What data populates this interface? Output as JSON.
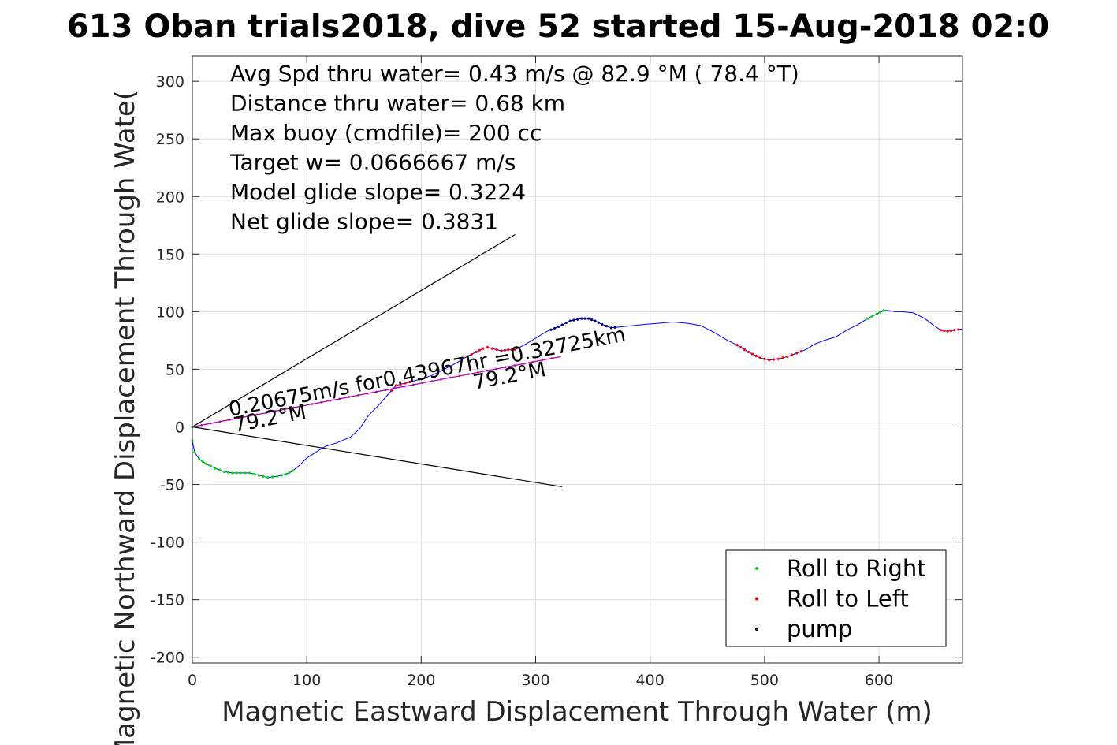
{
  "chart_data": {
    "type": "scatter",
    "title": "613 Oban trials2018, dive 52 started 15-Aug-2018 02:0",
    "xlabel": "Magnetic Eastward Displacement Through Water (m)",
    "ylabel": "Magnetic Northward Displacement Through Wate(",
    "xlim": [
      0,
      673
    ],
    "ylim": [
      -205,
      322
    ],
    "xticks": [
      "0",
      "100",
      "200",
      "300",
      "400",
      "500",
      "600"
    ],
    "yticks": [
      "300",
      "250",
      "200",
      "150",
      "100",
      "50",
      "0",
      "-50",
      "-100",
      "-150",
      "-200"
    ],
    "grid": true,
    "annotations": [
      "Avg Spd thru water=  0.43 m/s @  82.9 °M ( 78.4 °T)",
      "Distance thru water=  0.68 km",
      "Max buoy (cmdfile)= 200 cc",
      "Target w= 0.0666667 m/s",
      "Model glide slope= 0.3224",
      "Net glide slope= 0.3831"
    ],
    "current_label": "0.20675m/s for0.43967hr =0.32725km",
    "heading_labels": [
      "79.2°M",
      "79.2°M"
    ],
    "cone_lines": [
      {
        "x": [
          0,
          282
        ],
        "y": [
          0,
          167
        ]
      },
      {
        "x": [
          0,
          323
        ],
        "y": [
          0,
          -52
        ]
      }
    ],
    "current_line": {
      "x": [
        0,
        322
      ],
      "y": [
        0,
        61
      ]
    },
    "track": {
      "x": [
        0,
        0,
        2,
        6,
        12,
        20,
        28,
        35,
        42,
        50,
        58,
        66,
        74,
        82,
        88,
        94,
        100,
        108,
        116,
        126,
        138,
        146,
        154,
        162,
        170,
        178,
        186,
        194,
        202,
        210,
        220,
        230,
        240,
        248,
        254,
        258,
        262,
        266,
        270,
        276,
        282,
        290,
        300,
        310,
        320,
        330,
        340,
        346,
        352,
        358,
        366,
        376,
        386,
        396,
        408,
        420,
        432,
        444,
        456,
        466,
        476,
        486,
        496,
        504,
        512,
        520,
        528,
        536,
        544,
        552,
        562,
        572,
        582,
        590,
        598,
        604,
        608,
        614,
        620,
        630,
        640,
        648,
        654,
        660,
        666,
        673
      ],
      "y": [
        0,
        -12,
        -22,
        -28,
        -32,
        -36,
        -39,
        -40,
        -40,
        -40,
        -42,
        -44,
        -43,
        -41,
        -38,
        -33,
        -27,
        -22,
        -17,
        -14,
        -9,
        -2,
        10,
        18,
        27,
        36,
        38,
        40,
        42,
        45,
        50,
        55,
        61,
        65,
        68,
        69,
        68,
        67,
        66,
        67,
        67,
        71,
        77,
        83,
        87,
        92,
        94,
        94,
        92,
        89,
        86,
        87,
        88,
        89,
        90,
        91,
        90,
        88,
        82,
        76,
        71,
        65,
        60,
        58,
        59,
        61,
        64,
        67,
        72,
        75,
        78,
        84,
        89,
        94,
        98,
        101,
        101,
        100,
        100,
        99,
        94,
        88,
        84,
        83,
        84,
        85
      ]
    },
    "legend": {
      "placement": "bottom-right",
      "entries": [
        {
          "label": "Roll to Right",
          "color": "#00dd00"
        },
        {
          "label": "Roll to Left",
          "color": "#ff0000"
        },
        {
          "label": "pump",
          "color": "#000000"
        }
      ]
    },
    "colors": {
      "track": "#0000ff",
      "roll_right": "#00dd00",
      "roll_left": "#ff0000",
      "pump": "#000080",
      "current": "#b000b0"
    }
  }
}
